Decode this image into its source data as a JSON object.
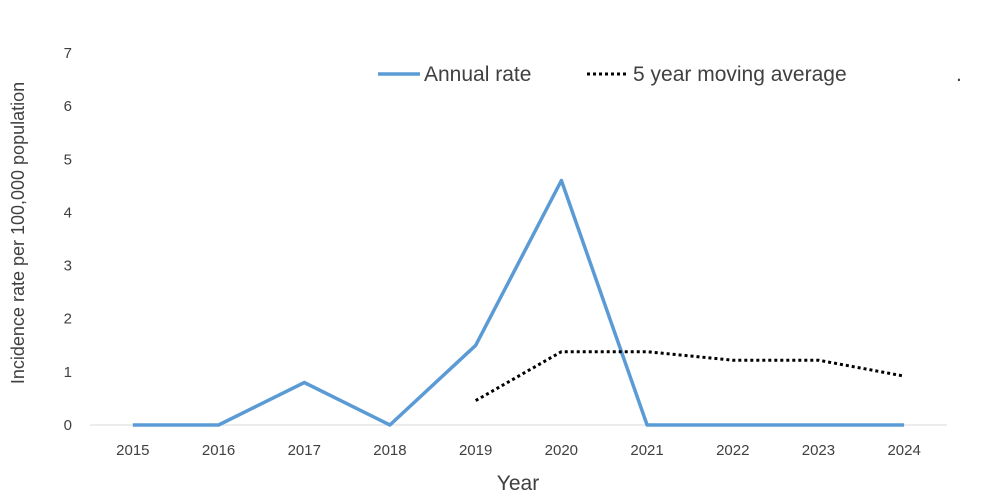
{
  "chart_data": {
    "type": "line",
    "title": "",
    "xlabel": "Year",
    "ylabel": "Incidence rate per 100,000 population",
    "ylim": [
      0,
      7
    ],
    "y_ticks": [
      "0",
      "1",
      "2",
      "3",
      "4",
      "5",
      "6",
      "7"
    ],
    "categories": [
      "2015",
      "2016",
      "2017",
      "2018",
      "2019",
      "2020",
      "2021",
      "2022",
      "2023",
      "2024"
    ],
    "grid": false,
    "legend_position": "top",
    "legend_extra": ".",
    "series": [
      {
        "name": "Annual rate",
        "style": "solid",
        "color": "#5b9bd5",
        "values": [
          0,
          0,
          0.8,
          0,
          1.5,
          4.6,
          0,
          0,
          0,
          0
        ]
      },
      {
        "name": "5 year moving average",
        "style": "dotted",
        "color": "#000000",
        "values": [
          null,
          null,
          null,
          null,
          0.46,
          1.38,
          1.38,
          1.22,
          1.22,
          0.92
        ]
      }
    ]
  }
}
